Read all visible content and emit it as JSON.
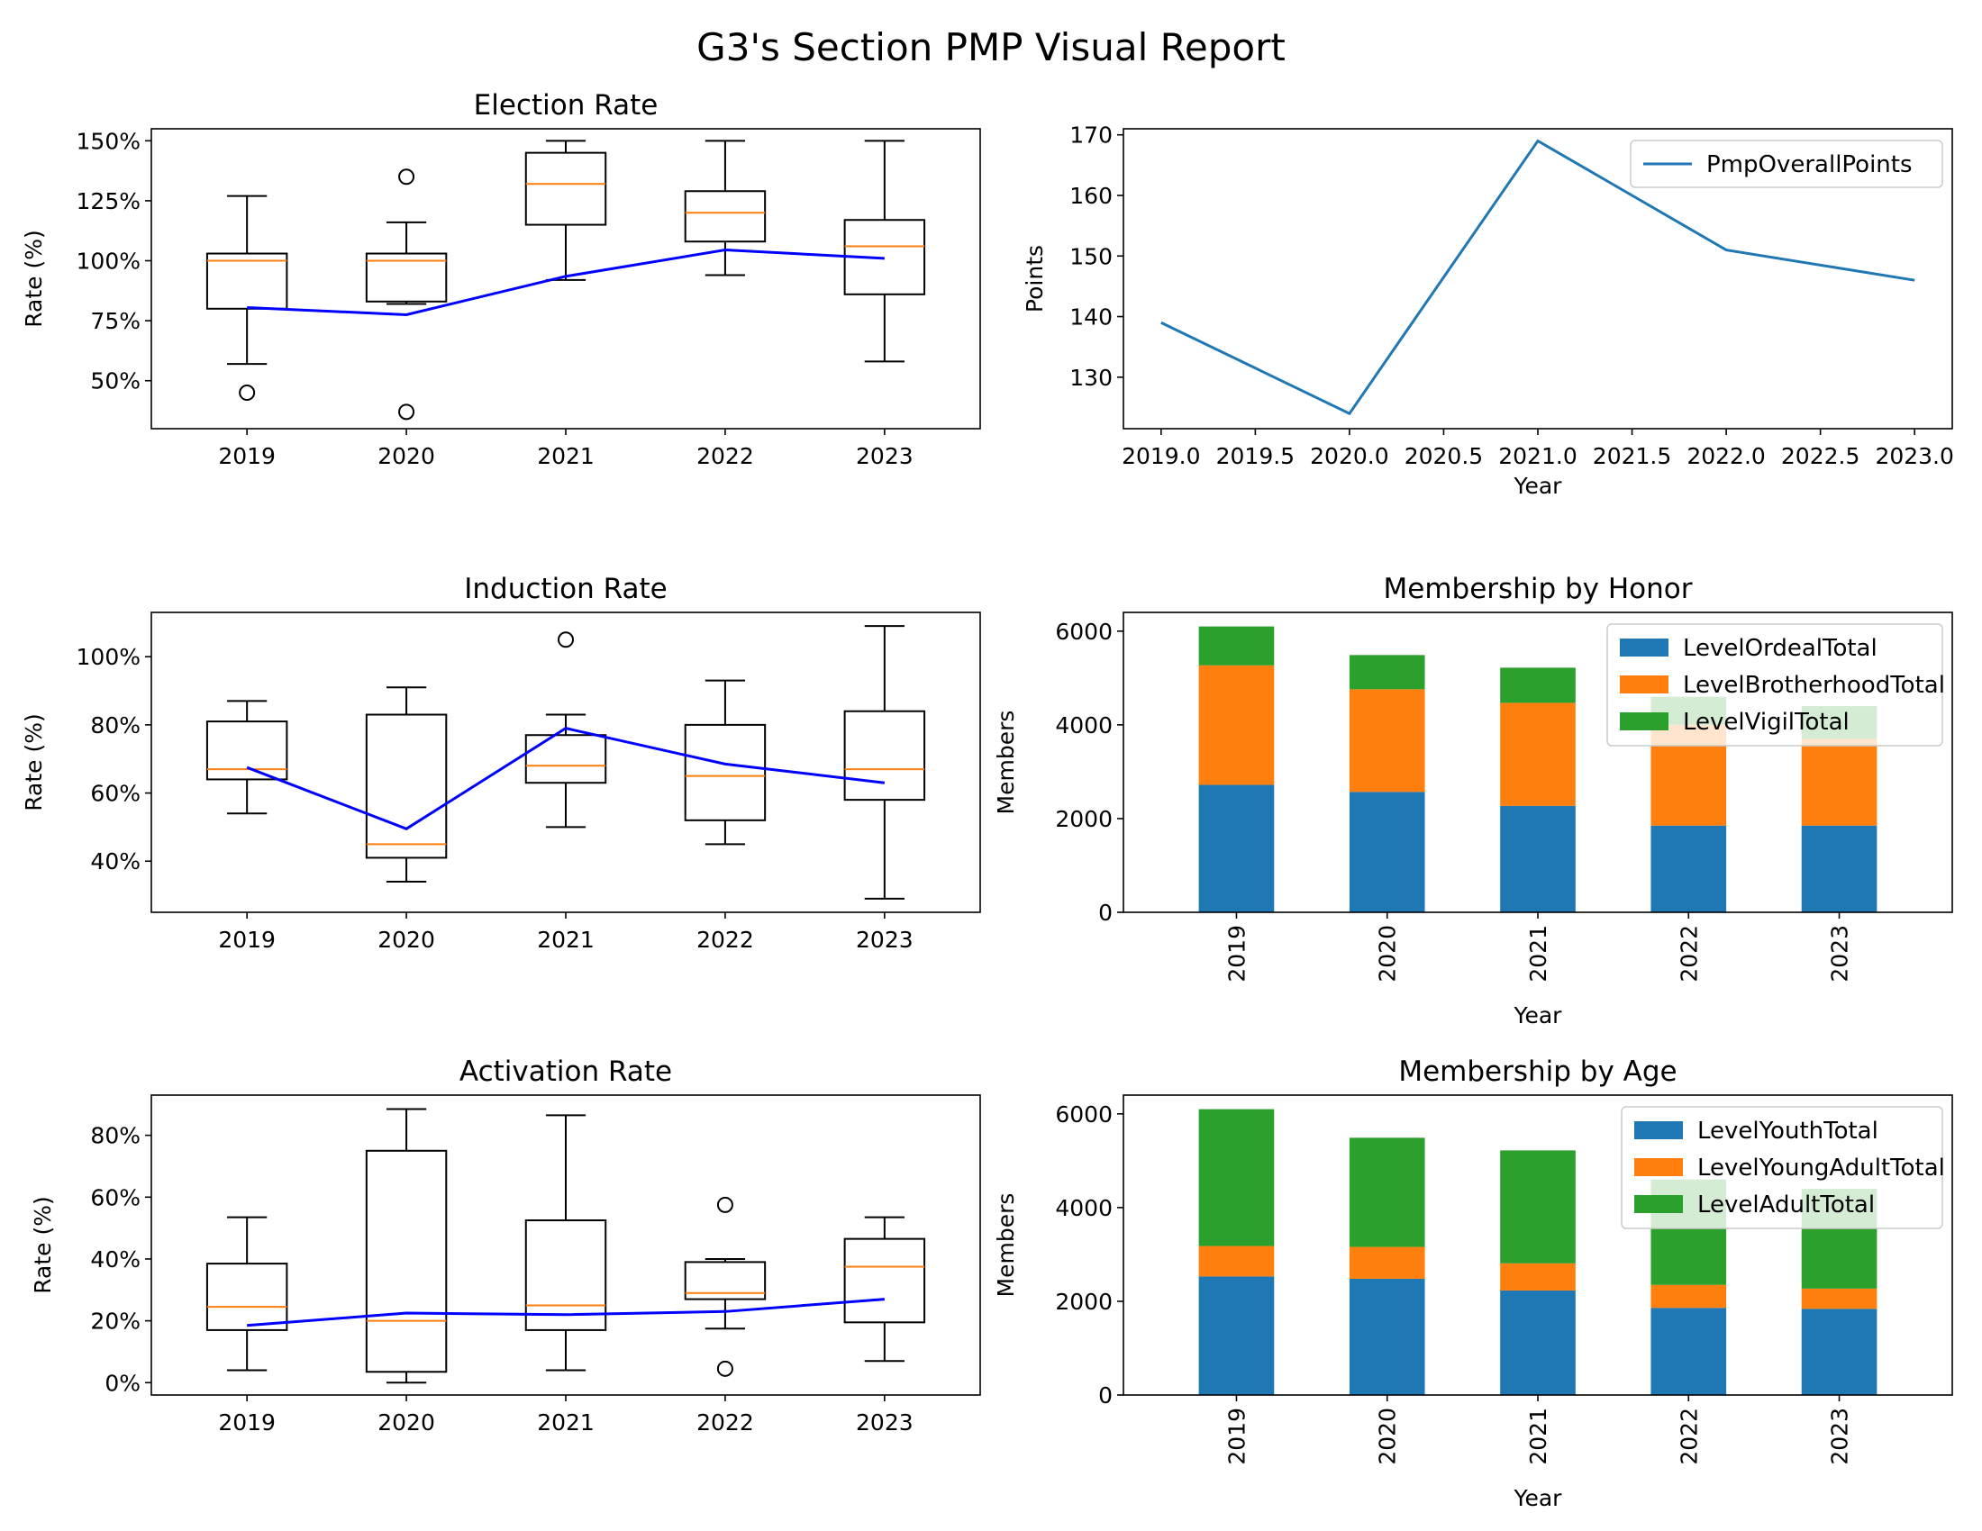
{
  "suptitle": "G3's Section PMP Visual Report",
  "colors": {
    "box": "#000000",
    "median": "#ff7f0e",
    "mean_line": "#0000ff",
    "pmp_line": "#1f77b4",
    "c0": "#1f77b4",
    "c1": "#ff7f0e",
    "c2": "#2ca02c"
  },
  "chart_data": [
    {
      "id": "election",
      "type": "box",
      "title": "Election Rate",
      "ylabel": "Rate (%)",
      "xlabel": "",
      "categories": [
        "2019",
        "2020",
        "2021",
        "2022",
        "2023"
      ],
      "ylim": [
        30,
        155
      ],
      "yticks": [
        50,
        75,
        100,
        125,
        150
      ],
      "ytick_labels": [
        "50%",
        "75%",
        "100%",
        "125%",
        "150%"
      ],
      "boxes": [
        {
          "whislo": 57,
          "q1": 80,
          "med": 100,
          "q3": 103,
          "whishi": 127,
          "fliers": [
            45
          ]
        },
        {
          "whislo": 82,
          "q1": 83,
          "med": 100,
          "q3": 103,
          "whishi": 116,
          "fliers": [
            135,
            37
          ]
        },
        {
          "whislo": 92,
          "q1": 115,
          "med": 132,
          "q3": 145,
          "whishi": 150,
          "fliers": []
        },
        {
          "whislo": 94,
          "q1": 108,
          "med": 120,
          "q3": 129,
          "whishi": 150,
          "fliers": []
        },
        {
          "whislo": 58,
          "q1": 86,
          "med": 106,
          "q3": 117,
          "whishi": 150,
          "fliers": []
        }
      ],
      "mean": [
        80.5,
        77.5,
        93.5,
        104.5,
        101
      ]
    },
    {
      "id": "pmp",
      "type": "line",
      "title": "",
      "ylabel": "Points",
      "xlabel": "Year",
      "legend": [
        "PmpOverallPoints"
      ],
      "legend_loc": "upper right",
      "x": [
        2019,
        2020,
        2021,
        2022,
        2023
      ],
      "y": [
        139,
        124,
        169,
        151,
        146
      ],
      "xlim": [
        2018.8,
        2023.2
      ],
      "ylim": [
        121.5,
        171
      ],
      "xticks": [
        2019.0,
        2019.5,
        2020.0,
        2020.5,
        2021.0,
        2021.5,
        2022.0,
        2022.5,
        2023.0
      ],
      "xtick_labels": [
        "2019.0",
        "2019.5",
        "2020.0",
        "2020.5",
        "2021.0",
        "2021.5",
        "2022.0",
        "2022.5",
        "2023.0"
      ],
      "yticks": [
        130,
        140,
        150,
        160,
        170
      ],
      "ytick_labels": [
        "130",
        "140",
        "150",
        "160",
        "170"
      ]
    },
    {
      "id": "induction",
      "type": "box",
      "title": "Induction Rate",
      "ylabel": "Rate (%)",
      "xlabel": "",
      "categories": [
        "2019",
        "2020",
        "2021",
        "2022",
        "2023"
      ],
      "ylim": [
        25,
        113
      ],
      "yticks": [
        40,
        60,
        80,
        100
      ],
      "ytick_labels": [
        "40%",
        "60%",
        "80%",
        "100%"
      ],
      "boxes": [
        {
          "whislo": 54,
          "q1": 64,
          "med": 67,
          "q3": 81,
          "whishi": 87,
          "fliers": []
        },
        {
          "whislo": 34,
          "q1": 41,
          "med": 45,
          "q3": 83,
          "whishi": 91,
          "fliers": []
        },
        {
          "whislo": 50,
          "q1": 63,
          "med": 68,
          "q3": 77,
          "whishi": 83,
          "fliers": [
            105
          ]
        },
        {
          "whislo": 45,
          "q1": 52,
          "med": 65,
          "q3": 80,
          "whishi": 93,
          "fliers": []
        },
        {
          "whislo": 29,
          "q1": 58,
          "med": 67,
          "q3": 84,
          "whishi": 109,
          "fliers": []
        }
      ],
      "mean": [
        67.5,
        49.5,
        79,
        68.5,
        63
      ]
    },
    {
      "id": "honor",
      "type": "bar",
      "stacked": true,
      "title": "Membership by Honor",
      "ylabel": "Members",
      "xlabel": "Year",
      "categories": [
        "2019",
        "2020",
        "2021",
        "2022",
        "2023"
      ],
      "ylim": [
        0,
        6400
      ],
      "yticks": [
        0,
        2000,
        4000,
        6000
      ],
      "ytick_labels": [
        "0",
        "2000",
        "4000",
        "6000"
      ],
      "legend_loc": "upper right",
      "series": [
        {
          "name": "LevelOrdealTotal",
          "values": [
            2720,
            2570,
            2270,
            1850,
            1850
          ]
        },
        {
          "name": "LevelBrotherhoodTotal",
          "values": [
            2550,
            2190,
            2200,
            2150,
            1850
          ]
        },
        {
          "name": "LevelVigilTotal",
          "values": [
            830,
            730,
            750,
            600,
            700
          ]
        }
      ]
    },
    {
      "id": "activation",
      "type": "box",
      "title": "Activation Rate",
      "ylabel": "Rate (%)",
      "xlabel": "",
      "categories": [
        "2019",
        "2020",
        "2021",
        "2022",
        "2023"
      ],
      "ylim": [
        -4,
        93
      ],
      "yticks": [
        0,
        20,
        40,
        60,
        80
      ],
      "ytick_labels": [
        "0%",
        "20%",
        "40%",
        "60%",
        "80%"
      ],
      "boxes": [
        {
          "whislo": 4,
          "q1": 17,
          "med": 24.5,
          "q3": 38.5,
          "whishi": 53.5,
          "fliers": []
        },
        {
          "whislo": 0,
          "q1": 3.5,
          "med": 20,
          "q3": 75,
          "whishi": 88.5,
          "fliers": []
        },
        {
          "whislo": 4,
          "q1": 17,
          "med": 25,
          "q3": 52.5,
          "whishi": 86.5,
          "fliers": []
        },
        {
          "whislo": 17.5,
          "q1": 27,
          "med": 29,
          "q3": 39,
          "whishi": 40,
          "fliers": [
            57.5,
            4.5
          ]
        },
        {
          "whislo": 7,
          "q1": 19.5,
          "med": 37.5,
          "q3": 46.5,
          "whishi": 53.5,
          "fliers": []
        }
      ],
      "mean": [
        18.5,
        22.5,
        22,
        23,
        27
      ]
    },
    {
      "id": "age",
      "type": "bar",
      "stacked": true,
      "title": "Membership by Age",
      "ylabel": "Members",
      "xlabel": "Year",
      "categories": [
        "2019",
        "2020",
        "2021",
        "2022",
        "2023"
      ],
      "ylim": [
        0,
        6400
      ],
      "yticks": [
        0,
        2000,
        4000,
        6000
      ],
      "ytick_labels": [
        "0",
        "2000",
        "4000",
        "6000"
      ],
      "legend_loc": "upper right",
      "series": [
        {
          "name": "LevelYouthTotal",
          "values": [
            2530,
            2480,
            2230,
            1860,
            1840
          ]
        },
        {
          "name": "LevelYoungAdultTotal",
          "values": [
            650,
            680,
            580,
            490,
            430
          ]
        },
        {
          "name": "LevelAdultTotal",
          "values": [
            2920,
            2330,
            2410,
            2250,
            2130
          ]
        }
      ]
    }
  ]
}
